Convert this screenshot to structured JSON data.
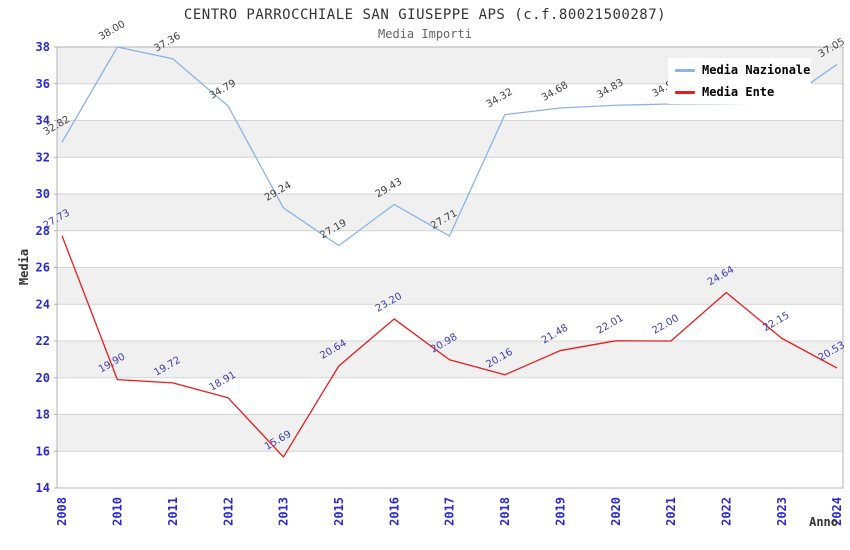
{
  "chart_data": {
    "type": "line",
    "title": "CENTRO PARROCCHIALE SAN GIUSEPPE APS (c.f.80021500287)",
    "subtitle": "Media Importi",
    "xlabel": "Anno",
    "ylabel": "Media",
    "ylim": [
      14,
      38
    ],
    "ytick_step": 2,
    "grid": "horizontal-bands",
    "legend_position": "top-right",
    "categories": [
      "2008",
      "2010",
      "2011",
      "2012",
      "2013",
      "2015",
      "2016",
      "2017",
      "2018",
      "2019",
      "2020",
      "2021",
      "2022",
      "2023",
      "2024"
    ],
    "series": [
      {
        "name": "Media Nazionale",
        "color": "#89b5e5",
        "label_color": "#404040",
        "values": [
          32.82,
          38.0,
          37.36,
          34.79,
          29.24,
          27.19,
          29.43,
          27.71,
          34.32,
          34.68,
          34.83,
          34.9,
          34.92,
          34.95,
          37.05
        ],
        "note_labels_hidden_by_legend": [
          "2021",
          "2022",
          "2023"
        ]
      },
      {
        "name": "Media Ente",
        "color": "#e51d1d",
        "label_color": "#3c3cb4",
        "values": [
          27.73,
          19.9,
          19.72,
          18.91,
          15.69,
          20.64,
          23.2,
          20.98,
          20.16,
          21.48,
          22.01,
          22.0,
          24.64,
          22.15,
          20.53
        ]
      }
    ],
    "colors": {
      "tick_label": "#2a2ad0",
      "band_fill": "#f0f0f0",
      "gridline": "#d4d4d4",
      "plot_border": "#b3b3b3",
      "title": "#333333",
      "subtitle": "#666666"
    }
  }
}
